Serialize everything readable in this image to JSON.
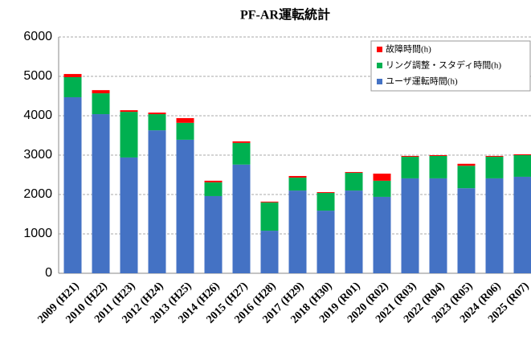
{
  "chart_data": {
    "type": "stacked-bar",
    "title": "PF-AR運転統計",
    "categories": [
      "2009 (H21)",
      "2010 (H22)",
      "2011 (H23)",
      "2012 (H24)",
      "2013 (H25)",
      "2014 (H26)",
      "2015 (H27)",
      "2016 (H28)",
      "2017 (H29)",
      "2018 (H30)",
      "2019 (R01)",
      "2020 (R02)",
      "2021 (R03)",
      "2022 (R04)",
      "2023 (R05)",
      "2024 (R06)",
      "2025 (R07)"
    ],
    "series": [
      {
        "name": "故障時間(h)",
        "color": "#ff0000",
        "values": [
          80,
          80,
          40,
          40,
          120,
          40,
          40,
          20,
          40,
          20,
          20,
          180,
          20,
          20,
          50,
          20,
          20
        ]
      },
      {
        "name": "リング調整・スタディ時間(h)",
        "color": "#00b050",
        "values": [
          510,
          530,
          1160,
          410,
          430,
          350,
          550,
          720,
          330,
          450,
          450,
          410,
          550,
          570,
          570,
          550,
          550
        ]
      },
      {
        "name": "ユーザ運転時間(h)",
        "color": "#4472c4",
        "values": [
          4470,
          4040,
          2940,
          3630,
          3390,
          1960,
          2760,
          1080,
          2100,
          1590,
          2100,
          1940,
          2410,
          2410,
          2160,
          2410,
          2450
        ]
      }
    ],
    "ylim": [
      0,
      6000
    ],
    "yticks": [
      0,
      1000,
      2000,
      3000,
      4000,
      5000,
      6000
    ],
    "grid": true,
    "legend": "top-right"
  }
}
